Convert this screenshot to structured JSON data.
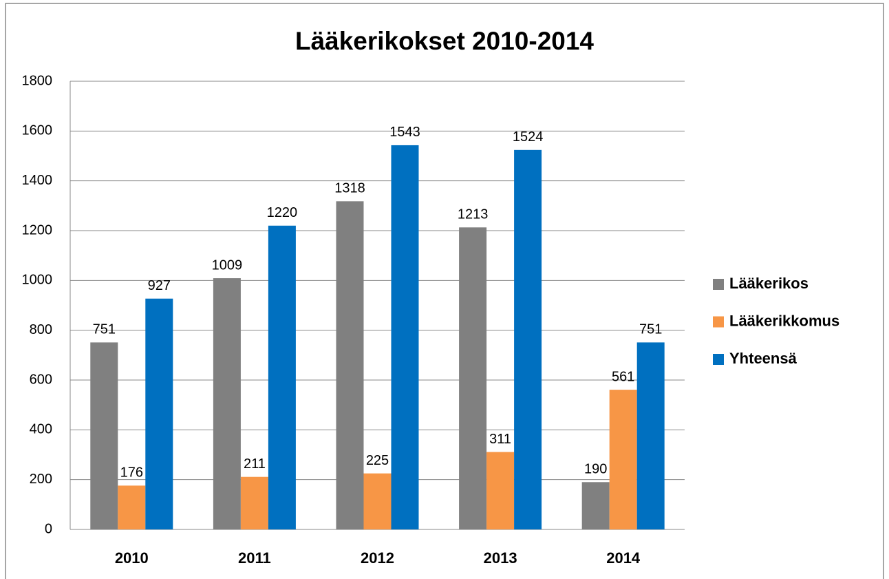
{
  "chart_data": {
    "type": "bar",
    "title": "Lääkerikokset 2010-2014",
    "categories": [
      "2010",
      "2011",
      "2012",
      "2013",
      "2014"
    ],
    "series": [
      {
        "name": "Lääkerikos",
        "color": "#808080",
        "values": [
          751,
          1009,
          1318,
          1213,
          190
        ]
      },
      {
        "name": "Lääkerikkomus",
        "color": "#f79646",
        "values": [
          176,
          211,
          225,
          311,
          561
        ]
      },
      {
        "name": "Yhteensä",
        "color": "#0070c0",
        "values": [
          927,
          1220,
          1543,
          1524,
          751
        ]
      }
    ],
    "ylim": [
      0,
      1800
    ],
    "yticks": [
      0,
      200,
      400,
      600,
      800,
      1000,
      1200,
      1400,
      1600,
      1800
    ],
    "grid": true,
    "legend": "right"
  }
}
